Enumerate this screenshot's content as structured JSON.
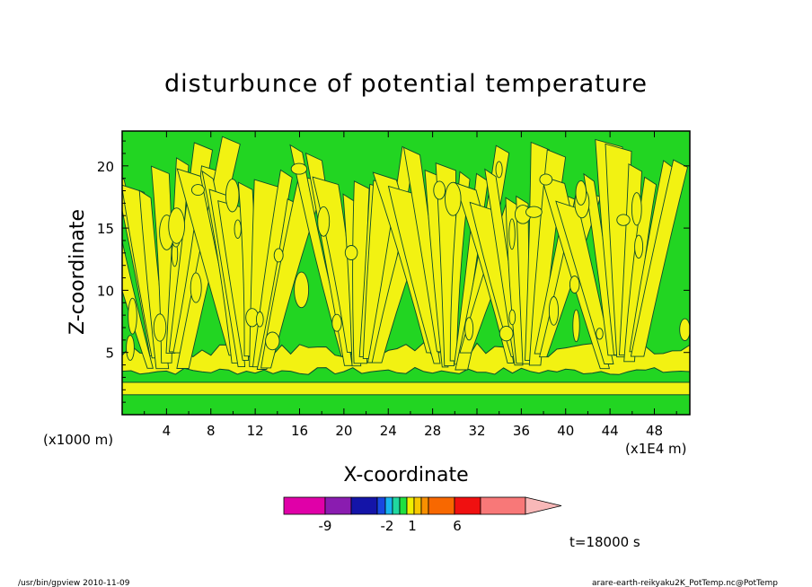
{
  "chart_data": {
    "type": "heatmap",
    "title": "disturbunce of potential temperature",
    "xlabel": "X-coordinate",
    "ylabel": "Z-coordinate",
    "x_unit_label": "(x1000 m)",
    "x_scale_label": "(x1E4 m)",
    "x_ticks": [
      4,
      8,
      12,
      16,
      20,
      24,
      28,
      32,
      36,
      40,
      44,
      48
    ],
    "y_ticks": [
      5,
      10,
      15,
      20
    ],
    "xlim": [
      0,
      51.2
    ],
    "ylim": [
      0,
      22.8
    ],
    "time_label": "t=18000 s",
    "colorbar": {
      "labels": [
        {
          "value": -9,
          "text": "-9"
        },
        {
          "value": -2,
          "text": "-2"
        },
        {
          "value": 1,
          "text": "1"
        },
        {
          "value": 6,
          "text": "6"
        }
      ],
      "colors": [
        "#e000a8",
        "#8a1cb0",
        "#1414a8",
        "#1848e0",
        "#18b4f0",
        "#20d8a0",
        "#20e040",
        "#f0f000",
        "#f8c800",
        "#f89000",
        "#f86800",
        "#f01010",
        "#f87878",
        "#f8b8b8"
      ]
    },
    "field_colors": {
      "background": "#22d522",
      "positive": "#f2f212",
      "contour": "#0c4a2c"
    },
    "plumes_x": [
      4,
      11.5,
      21.5,
      29.5,
      36.5,
      45
    ],
    "bottom_band": {
      "z_from": 1.6,
      "z_to": 2.6
    }
  },
  "footer": {
    "left": "/usr/bin/gpview   2010-11-09",
    "right": "arare-earth-reikyaku2K_PotTemp.nc@PotTemp"
  }
}
